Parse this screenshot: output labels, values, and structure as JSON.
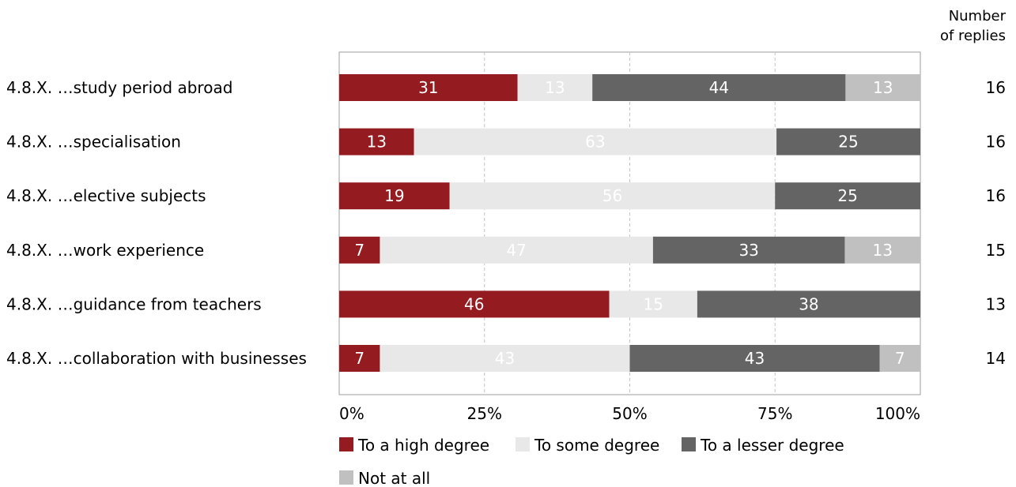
{
  "chart_data": {
    "type": "bar",
    "orientation": "horizontal",
    "stacked": "100%",
    "categories": [
      "4.8.X. …study period abroad",
      "4.8.X. …specialisation",
      "4.8.X. …elective subjects",
      "4.8.X. …work experience",
      "4.8.X. …guidance from teachers",
      "4.8.X. …collaboration with businesses"
    ],
    "series": [
      {
        "name": "To a high degree",
        "color": "#941b20",
        "label_color": "#ffffff",
        "values": [
          31,
          13,
          19,
          7,
          46,
          7
        ]
      },
      {
        "name": "To some degree",
        "color": "#e8e8e8",
        "label_color": "#ffffff",
        "values": [
          13,
          63,
          56,
          47,
          15,
          43
        ]
      },
      {
        "name": "To a lesser degree",
        "color": "#646464",
        "label_color": "#ffffff",
        "values": [
          44,
          25,
          25,
          33,
          38,
          43
        ]
      },
      {
        "name": "Not at all",
        "color": "#c0c0c0",
        "label_color": "#ffffff",
        "values": [
          13,
          0,
          0,
          13,
          0,
          7
        ]
      }
    ],
    "xlim": [
      0,
      100
    ],
    "x_ticks": [
      "0%",
      "25%",
      "50%",
      "75%",
      "100%"
    ],
    "grid": "vertical dashed",
    "legend_position": "bottom-left",
    "right_column": {
      "header": [
        "Number",
        "of replies"
      ],
      "values": [
        16,
        16,
        16,
        15,
        13,
        14
      ]
    }
  }
}
